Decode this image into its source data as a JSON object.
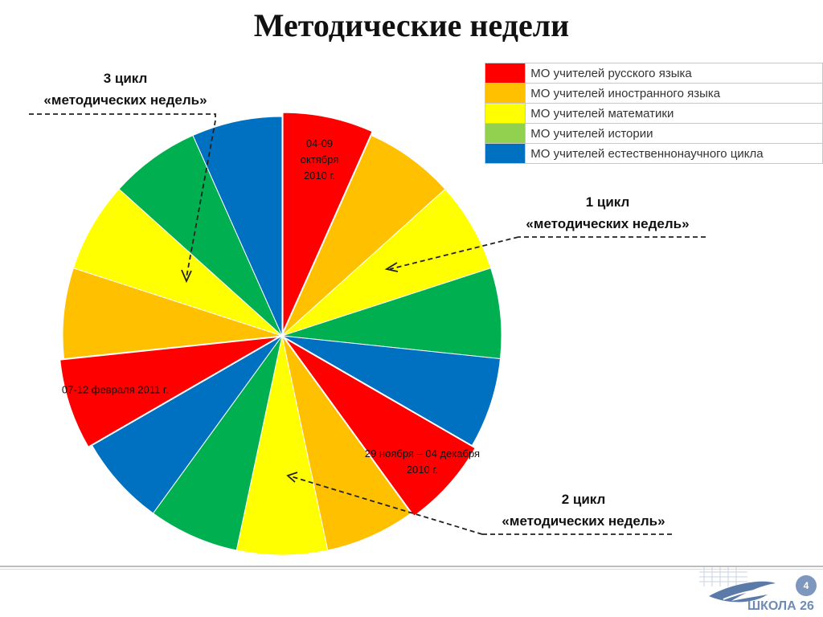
{
  "title": "Методические недели",
  "legend": [
    {
      "color": "#ff0000",
      "label": "МО учителей русского языка"
    },
    {
      "color": "#ffc000",
      "label": "МО учителей иностранного языка"
    },
    {
      "color": "#ffff00",
      "label": "МО учителей математики"
    },
    {
      "color": "#92d050",
      "label": "МО учителей истории"
    },
    {
      "color": "#0070c0",
      "label": "МО учителей естественнонаучного цикла"
    }
  ],
  "cycles": {
    "cycle1": {
      "line1": "1 цикл",
      "line2": "«методических недель»"
    },
    "cycle2": {
      "line1": "2 цикл",
      "line2": "«методических недель»"
    },
    "cycle3": {
      "line1": "3 цикл",
      "line2": "«методических недель»"
    }
  },
  "chart_data": {
    "type": "pie",
    "title": "Методические недели",
    "values": [
      1,
      1,
      1,
      1,
      1,
      1,
      1,
      1,
      1,
      1,
      1,
      1,
      1,
      1,
      1
    ],
    "colors": [
      "#ff0000",
      "#ffc000",
      "#ffff00",
      "#00b050",
      "#0070c0",
      "#ff0000",
      "#ffc000",
      "#ffff00",
      "#00b050",
      "#0070c0",
      "#ff0000",
      "#ffc000",
      "#ffff00",
      "#00b050",
      "#0070c0"
    ],
    "annotations": [
      {
        "slice": 0,
        "lines": [
          "04-09",
          "октября",
          "2010 г."
        ]
      },
      {
        "slice": 5,
        "lines": [
          "29 ноября – 04 декабря",
          "2010 г."
        ]
      },
      {
        "slice": 10,
        "lines": [
          "07-12 февраля 2011 г."
        ]
      }
    ],
    "exploded": [
      0,
      5,
      10
    ]
  },
  "footer": {
    "page_number": "4",
    "school": "ШКОЛА 26"
  }
}
